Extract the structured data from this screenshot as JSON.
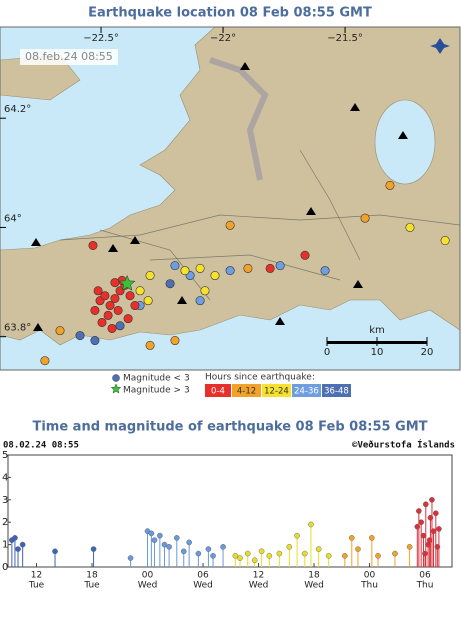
{
  "map": {
    "title": "Earthquake location   08 Feb 08:55 GMT",
    "timestamp": "08.feb.24  08:55",
    "xlim": [
      -22.914,
      -21.029
    ],
    "ylim": [
      63.739,
      64.367
    ],
    "xticks": [
      {
        "value": -22.5,
        "label": "−22.5°"
      },
      {
        "value": -22,
        "label": "−22°"
      },
      {
        "value": -21.5,
        "label": "−21.5°"
      }
    ],
    "yticks": [
      {
        "value": 64.2,
        "label": "64.2°"
      },
      {
        "value": 64,
        "label": "64°"
      },
      {
        "value": 63.8,
        "label": "63.8°"
      }
    ],
    "scale": {
      "label": "km",
      "ticks": [
        0,
        10,
        20
      ]
    },
    "magnitude_legend": [
      "Magnitude < 3",
      "Magnitude > 3"
    ],
    "legend_title": "Hours since earthquake:",
    "classes": [
      {
        "label": "0-4",
        "color": "#e8302a",
        "lon": [
          -22.504,
          -22.484,
          -22.463,
          -22.443,
          -22.422,
          -22.402,
          -22.381,
          -22.471,
          -22.43,
          -22.525,
          -22.496,
          -22.455,
          -22.414,
          -22.361,
          -22.389,
          -22.512,
          -22.443,
          -22.533,
          -21.807,
          -21.664
        ],
        "lat": [
          63.866,
          63.875,
          63.857,
          63.87,
          63.884,
          63.894,
          63.875,
          63.839,
          63.848,
          63.848,
          63.826,
          63.815,
          63.903,
          63.857,
          63.833,
          63.884,
          63.899,
          63.967,
          63.925,
          63.949
        ]
      },
      {
        "label": "4-12",
        "color": "#f2a229",
        "lon": [
          -22.668,
          -22.73,
          -22.299,
          -22.197,
          -21.898,
          -21.316,
          -21.418,
          -21.971
        ],
        "lat": [
          63.811,
          63.756,
          63.784,
          63.793,
          63.925,
          64.077,
          64.017,
          64.004
        ]
      },
      {
        "label": "12-24",
        "color": "#f5e12e",
        "lon": [
          -22.34,
          -22.299,
          -22.156,
          -22.094,
          -22.033,
          -22.074,
          -22.307,
          -21.234,
          -21.09
        ],
        "lat": [
          63.884,
          63.912,
          63.921,
          63.925,
          63.912,
          63.884,
          63.866,
          64.0,
          63.976
        ]
      },
      {
        "label": "24-36",
        "color": "#6f9ee0",
        "lon": [
          -22.197,
          -22.135,
          -21.766,
          -21.582,
          -22.094,
          -21.971,
          -22.34
        ],
        "lat": [
          63.93,
          63.912,
          63.93,
          63.921,
          63.866,
          63.921,
          63.857
        ]
      },
      {
        "label": "36-48",
        "color": "#4f6fb5",
        "lon": [
          -22.217,
          -22.422,
          -22.586,
          -22.525
        ],
        "lat": [
          63.897,
          63.82,
          63.802,
          63.793
        ]
      }
    ],
    "large": {
      "color": "#3cc03c",
      "lon": [
        -22.393
      ],
      "lat": [
        63.897
      ]
    }
  },
  "chart_data": {
    "type": "stem",
    "title": "Time and magnitude of earthquake   08 Feb 08:55 GMT",
    "subtitle": "08.02.24 08:55",
    "credit": "©Veðurstofa Íslands",
    "xlim": [
      "2024-02-06T08:55",
      "2024-02-08T08:55"
    ],
    "xticks": [
      {
        "value": "2024-02-06T12:00",
        "label": "12"
      },
      {
        "value": "2024-02-06T18:00",
        "label": "18"
      },
      {
        "value": "2024-02-07T00:00",
        "label": "00"
      },
      {
        "value": "2024-02-07T06:00",
        "label": "06"
      },
      {
        "value": "2024-02-07T12:00",
        "label": "12"
      },
      {
        "value": "2024-02-07T18:00",
        "label": "18"
      },
      {
        "value": "2024-02-08T00:00",
        "label": "00"
      },
      {
        "value": "2024-02-08T06:00",
        "label": "06"
      }
    ],
    "xtick_days": [
      "Tue",
      "Tue",
      "Wed",
      "Wed",
      "Wed",
      "Wed",
      "Thu",
      "Thu"
    ],
    "ylim": [
      0,
      5
    ],
    "yticks": [
      0,
      1,
      2,
      3,
      4,
      5
    ],
    "series": [
      {
        "color": "#3f63b8",
        "x": [
          "2024-02-06T09:20",
          "2024-02-06T09:40",
          "2024-02-06T10:00",
          "2024-02-06T10:30",
          "2024-02-06T14:00",
          "2024-02-06T18:10"
        ],
        "values": [
          1.2,
          1.3,
          0.8,
          1.0,
          0.7,
          0.8
        ]
      },
      {
        "color": "#6a98dc",
        "x": [
          "2024-02-06T22:10",
          "2024-02-07T00:00",
          "2024-02-07T00:25",
          "2024-02-07T00:45",
          "2024-02-07T01:20",
          "2024-02-07T01:50",
          "2024-02-07T02:20",
          "2024-02-07T03:10",
          "2024-02-07T03:55",
          "2024-02-07T04:30",
          "2024-02-07T05:30",
          "2024-02-07T06:35",
          "2024-02-07T07:05",
          "2024-02-07T08:10"
        ],
        "values": [
          0.4,
          1.6,
          1.5,
          1.2,
          1.4,
          1.0,
          0.9,
          1.3,
          0.7,
          1.1,
          0.6,
          0.8,
          0.5,
          0.9
        ]
      },
      {
        "color": "#e8dc2a",
        "x": [
          "2024-02-07T09:30",
          "2024-02-07T10:00",
          "2024-02-07T10:50",
          "2024-02-07T11:35",
          "2024-02-07T12:20",
          "2024-02-07T13:10",
          "2024-02-07T14:15",
          "2024-02-07T15:20",
          "2024-02-07T16:10",
          "2024-02-07T17:00",
          "2024-02-07T17:40",
          "2024-02-07T18:30",
          "2024-02-07T19:35"
        ],
        "values": [
          0.5,
          0.4,
          0.6,
          0.3,
          0.7,
          0.5,
          0.6,
          0.9,
          1.4,
          0.6,
          1.9,
          0.8,
          0.5
        ]
      },
      {
        "color": "#f2a229",
        "x": [
          "2024-02-07T21:20",
          "2024-02-07T22:05",
          "2024-02-07T22:45",
          "2024-02-08T00:15",
          "2024-02-08T00:55",
          "2024-02-08T02:45",
          "2024-02-08T04:20"
        ],
        "values": [
          0.5,
          1.3,
          0.8,
          1.3,
          0.5,
          0.6,
          0.9
        ]
      },
      {
        "color": "#d8323c",
        "x": [
          "2024-02-08T05:10",
          "2024-02-08T05:20",
          "2024-02-08T05:35",
          "2024-02-08T05:50",
          "2024-02-08T06:00",
          "2024-02-08T06:05",
          "2024-02-08T06:20",
          "2024-02-08T06:30",
          "2024-02-08T06:35",
          "2024-02-08T06:45",
          "2024-02-08T06:55",
          "2024-02-08T07:10",
          "2024-02-08T07:20",
          "2024-02-08T07:30"
        ],
        "values": [
          1.8,
          2.5,
          2.0,
          1.4,
          0.6,
          2.8,
          1.0,
          1.2,
          2.2,
          3.0,
          1.6,
          2.4,
          0.9,
          1.7
        ]
      }
    ]
  }
}
